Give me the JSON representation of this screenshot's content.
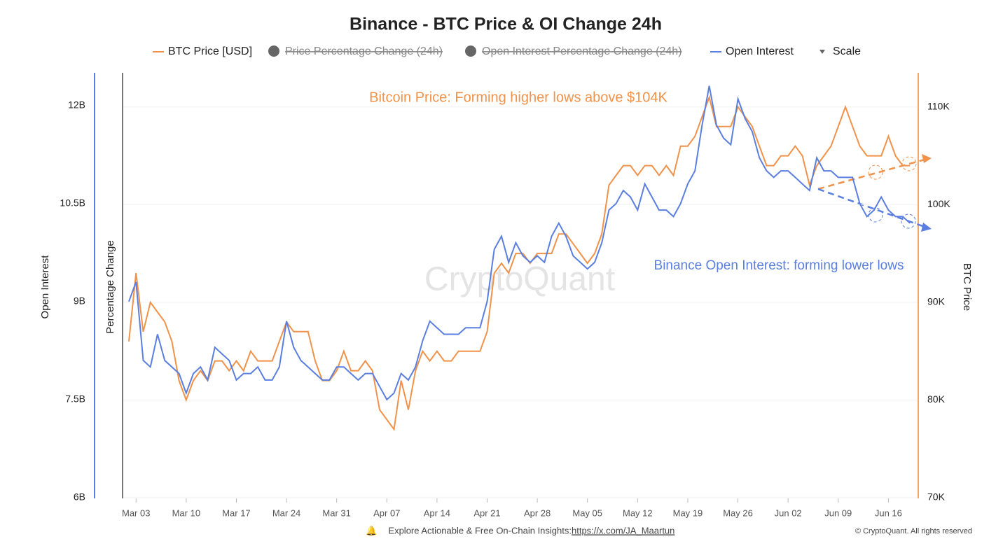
{
  "chart_data": {
    "type": "line",
    "title": "Binance - BTC Price & OI Change 24h",
    "x": [
      "Mar 02",
      "Mar 03",
      "Mar 04",
      "Mar 05",
      "Mar 06",
      "Mar 07",
      "Mar 08",
      "Mar 09",
      "Mar 10",
      "Mar 11",
      "Mar 12",
      "Mar 13",
      "Mar 14",
      "Mar 15",
      "Mar 16",
      "Mar 17",
      "Mar 18",
      "Mar 19",
      "Mar 20",
      "Mar 21",
      "Mar 22",
      "Mar 23",
      "Mar 24",
      "Mar 25",
      "Mar 26",
      "Mar 27",
      "Mar 28",
      "Mar 29",
      "Mar 30",
      "Mar 31",
      "Apr 01",
      "Apr 02",
      "Apr 03",
      "Apr 04",
      "Apr 05",
      "Apr 06",
      "Apr 07",
      "Apr 08",
      "Apr 09",
      "Apr 10",
      "Apr 11",
      "Apr 12",
      "Apr 13",
      "Apr 14",
      "Apr 15",
      "Apr 16",
      "Apr 17",
      "Apr 18",
      "Apr 19",
      "Apr 20",
      "Apr 21",
      "Apr 22",
      "Apr 23",
      "Apr 24",
      "Apr 25",
      "Apr 26",
      "Apr 27",
      "Apr 28",
      "Apr 29",
      "Apr 30",
      "May 01",
      "May 02",
      "May 03",
      "May 04",
      "May 05",
      "May 06",
      "May 07",
      "May 08",
      "May 09",
      "May 10",
      "May 11",
      "May 12",
      "May 13",
      "May 14",
      "May 15",
      "May 16",
      "May 17",
      "May 18",
      "May 19",
      "May 20",
      "May 21",
      "May 22",
      "May 23",
      "May 24",
      "May 25",
      "May 26",
      "May 27",
      "May 28",
      "May 29",
      "May 30",
      "May 31",
      "Jun 01",
      "Jun 02",
      "Jun 03",
      "Jun 04",
      "Jun 05",
      "Jun 06",
      "Jun 07",
      "Jun 08",
      "Jun 09",
      "Jun 10",
      "Jun 11",
      "Jun 12",
      "Jun 13",
      "Jun 14",
      "Jun 15",
      "Jun 16",
      "Jun 17",
      "Jun 18",
      "Jun 19"
    ],
    "series": [
      {
        "name": "BTC Price [USD]",
        "color": "#f0924a",
        "axis": "y2",
        "values": [
          86,
          93,
          87,
          90,
          89,
          88,
          86,
          82,
          80,
          82,
          83,
          82,
          84,
          84,
          83,
          84,
          83,
          85,
          84,
          84,
          84,
          86,
          88,
          87,
          87,
          87,
          84,
          82,
          82,
          83,
          85,
          83,
          83,
          84,
          83,
          79,
          78,
          77,
          82,
          79,
          83,
          85,
          84,
          85,
          84,
          84,
          85,
          85,
          85,
          85,
          87,
          93,
          94,
          93,
          95,
          95,
          94,
          95,
          95,
          95,
          97,
          97,
          96,
          95,
          94,
          95,
          97,
          102,
          103,
          104,
          104,
          103,
          104,
          104,
          103,
          104,
          103,
          106,
          106,
          107,
          109,
          111,
          108,
          108,
          108,
          110,
          109,
          108,
          106,
          104,
          104,
          105,
          105,
          106,
          105,
          102,
          104,
          105,
          106,
          108,
          110,
          108,
          106,
          105,
          105,
          105,
          107,
          105,
          104,
          104
        ]
      },
      {
        "name": "Open Interest",
        "color": "#5b7fe0",
        "values": [
          9.0,
          9.3,
          8.1,
          8.0,
          8.5,
          8.1,
          8.0,
          7.9,
          7.6,
          7.9,
          8.0,
          7.8,
          8.3,
          8.2,
          8.1,
          7.8,
          7.9,
          7.9,
          8.0,
          7.8,
          7.8,
          8.0,
          8.7,
          8.3,
          8.1,
          8.0,
          7.9,
          7.8,
          7.8,
          8.0,
          8.0,
          7.9,
          7.8,
          7.9,
          7.9,
          7.7,
          7.5,
          7.6,
          7.9,
          7.8,
          8.0,
          8.4,
          8.7,
          8.6,
          8.5,
          8.5,
          8.5,
          8.6,
          8.6,
          8.6,
          9.0,
          9.8,
          10.0,
          9.6,
          9.9,
          9.7,
          9.6,
          9.7,
          9.6,
          10.0,
          10.2,
          10.0,
          9.7,
          9.6,
          9.5,
          9.6,
          9.9,
          10.4,
          10.5,
          10.7,
          10.6,
          10.4,
          10.8,
          10.6,
          10.4,
          10.4,
          10.3,
          10.5,
          10.8,
          11.0,
          11.7,
          12.3,
          11.7,
          11.5,
          11.4,
          12.1,
          11.8,
          11.6,
          11.2,
          11.0,
          10.9,
          11.0,
          11.0,
          10.9,
          10.8,
          10.7,
          11.2,
          11.0,
          11.0,
          10.9,
          10.9,
          10.9,
          10.5,
          10.3,
          10.4,
          10.6,
          10.4,
          10.3,
          10.3,
          10.2
        ]
      }
    ],
    "legend_extra": [
      "Price Percentage Change (24h)",
      "Open Interest Percentage Change (24h)"
    ],
    "scale_label": "Scale",
    "xticks": [
      "Mar 03",
      "Mar 10",
      "Mar 17",
      "Mar 24",
      "Mar 31",
      "Apr 07",
      "Apr 14",
      "Apr 21",
      "Apr 28",
      "May 05",
      "May 12",
      "May 19",
      "May 26",
      "Jun 02",
      "Jun 09",
      "Jun 16"
    ],
    "ylim": [
      6,
      12.5
    ],
    "yticks": [
      {
        "value": 6,
        "label": "6B"
      },
      {
        "value": 7.5,
        "label": "7.5B"
      },
      {
        "value": 9,
        "label": "9B"
      },
      {
        "value": 10.5,
        "label": "10.5B"
      },
      {
        "value": 12,
        "label": "12B"
      }
    ],
    "y2lim": [
      70,
      113.5
    ],
    "y2ticks": [
      {
        "value": 70,
        "label": "70K"
      },
      {
        "value": 80,
        "label": "80K"
      },
      {
        "value": 90,
        "label": "90K"
      },
      {
        "value": 100,
        "label": "100K"
      },
      {
        "value": 110,
        "label": "110K"
      }
    ],
    "ylabel": "Open Interest",
    "ylabel_mid": "Percentage Change",
    "y2label": "BTC Price",
    "annotations": [
      "Bitcoin Price: Forming higher lows above $104K",
      "Binance Open Interest: forming lower lows"
    ],
    "watermark": "CryptoQuant",
    "footer": "Explore Actionable & Free On-Chain Insights: ",
    "footer_link": "https://x.com/JA_Maartun",
    "copyright": "© CryptoQuant. All rights reserved",
    "grid": true
  }
}
